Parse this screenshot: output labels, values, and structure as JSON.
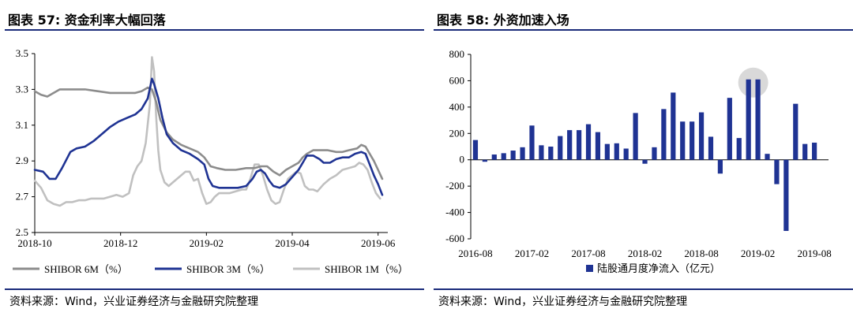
{
  "left": {
    "title": "图表 57: 资金利率大幅回落",
    "source": "资料来源：Wind，兴业证券经济与金融研究院整理",
    "chart_data": {
      "type": "line",
      "x_ticks": [
        "2018-10",
        "2018-12",
        "2019-02",
        "2019-04",
        "2019-06"
      ],
      "y_ticks": [
        "2.5",
        "2.7",
        "2.9",
        "3.1",
        "3.3",
        "3.5"
      ],
      "ylim": [
        2.5,
        3.5
      ],
      "xlim": [
        0,
        100
      ],
      "legend_position": "bottom",
      "series": [
        {
          "name": "SHIBOR 6M（%）",
          "color": "#8c8c8c",
          "points": [
            [
              0,
              3.29
            ],
            [
              3,
              3.27
            ],
            [
              6,
              3.26
            ],
            [
              9,
              3.28
            ],
            [
              12,
              3.3
            ],
            [
              18,
              3.3
            ],
            [
              24,
              3.3
            ],
            [
              30,
              3.29
            ],
            [
              36,
              3.28
            ],
            [
              42,
              3.28
            ],
            [
              48,
              3.28
            ],
            [
              51,
              3.29
            ],
            [
              54,
              3.31
            ],
            [
              56,
              3.3
            ],
            [
              58,
              3.23
            ],
            [
              60,
              3.13
            ],
            [
              63,
              3.06
            ],
            [
              66,
              3.02
            ],
            [
              70,
              2.99
            ],
            [
              74,
              2.97
            ],
            [
              78,
              2.95
            ],
            [
              81,
              2.92
            ],
            [
              84,
              2.87
            ],
            [
              87,
              2.86
            ],
            [
              91,
              2.85
            ],
            [
              96,
              2.85
            ],
            [
              101,
              2.86
            ],
            [
              105,
              2.86
            ],
            [
              108,
              2.87
            ],
            [
              111,
              2.87
            ],
            [
              114,
              2.84
            ],
            [
              117,
              2.82
            ],
            [
              120,
              2.85
            ],
            [
              123,
              2.87
            ],
            [
              126,
              2.89
            ],
            [
              128,
              2.92
            ],
            [
              130,
              2.94
            ],
            [
              133,
              2.96
            ],
            [
              136,
              2.96
            ],
            [
              140,
              2.96
            ],
            [
              144,
              2.95
            ],
            [
              147,
              2.95
            ],
            [
              150,
              2.96
            ],
            [
              154,
              2.97
            ],
            [
              156,
              2.99
            ],
            [
              158,
              2.98
            ],
            [
              160,
              2.94
            ],
            [
              162,
              2.9
            ],
            [
              164,
              2.85
            ],
            [
              166,
              2.8
            ]
          ]
        },
        {
          "name": "SHIBOR 3M（%）",
          "color": "#1f3393",
          "points": [
            [
              0,
              2.85
            ],
            [
              4,
              2.84
            ],
            [
              7,
              2.8
            ],
            [
              10,
              2.8
            ],
            [
              13,
              2.86
            ],
            [
              17,
              2.95
            ],
            [
              20,
              2.97
            ],
            [
              24,
              2.98
            ],
            [
              28,
              3.01
            ],
            [
              32,
              3.05
            ],
            [
              36,
              3.09
            ],
            [
              40,
              3.12
            ],
            [
              44,
              3.14
            ],
            [
              48,
              3.16
            ],
            [
              51,
              3.19
            ],
            [
              54,
              3.25
            ],
            [
              56,
              3.36
            ],
            [
              57,
              3.33
            ],
            [
              59,
              3.25
            ],
            [
              61,
              3.14
            ],
            [
              63,
              3.05
            ],
            [
              66,
              3.0
            ],
            [
              70,
              2.96
            ],
            [
              74,
              2.94
            ],
            [
              78,
              2.91
            ],
            [
              81,
              2.88
            ],
            [
              83,
              2.8
            ],
            [
              85,
              2.76
            ],
            [
              88,
              2.75
            ],
            [
              92,
              2.75
            ],
            [
              97,
              2.75
            ],
            [
              101,
              2.76
            ],
            [
              104,
              2.8
            ],
            [
              106,
              2.84
            ],
            [
              108,
              2.85
            ],
            [
              110,
              2.83
            ],
            [
              112,
              2.79
            ],
            [
              114,
              2.76
            ],
            [
              117,
              2.75
            ],
            [
              120,
              2.77
            ],
            [
              123,
              2.81
            ],
            [
              126,
              2.85
            ],
            [
              128,
              2.89
            ],
            [
              130,
              2.93
            ],
            [
              133,
              2.93
            ],
            [
              136,
              2.91
            ],
            [
              138,
              2.89
            ],
            [
              141,
              2.89
            ],
            [
              144,
              2.91
            ],
            [
              147,
              2.92
            ],
            [
              150,
              2.92
            ],
            [
              153,
              2.94
            ],
            [
              156,
              2.95
            ],
            [
              158,
              2.94
            ],
            [
              160,
              2.88
            ],
            [
              162,
              2.82
            ],
            [
              164,
              2.77
            ],
            [
              166,
              2.71
            ]
          ]
        },
        {
          "name": "SHIBOR 1M（%）",
          "color": "#c0c0c0",
          "points": [
            [
              0,
              2.79
            ],
            [
              3,
              2.75
            ],
            [
              6,
              2.68
            ],
            [
              9,
              2.66
            ],
            [
              12,
              2.65
            ],
            [
              15,
              2.67
            ],
            [
              18,
              2.67
            ],
            [
              21,
              2.68
            ],
            [
              24,
              2.68
            ],
            [
              27,
              2.69
            ],
            [
              30,
              2.69
            ],
            [
              33,
              2.69
            ],
            [
              36,
              2.7
            ],
            [
              39,
              2.71
            ],
            [
              42,
              2.7
            ],
            [
              45,
              2.72
            ],
            [
              47,
              2.82
            ],
            [
              49,
              2.87
            ],
            [
              51,
              2.9
            ],
            [
              53,
              3.0
            ],
            [
              55,
              3.22
            ],
            [
              56,
              3.48
            ],
            [
              57,
              3.4
            ],
            [
              58,
              3.15
            ],
            [
              59,
              2.96
            ],
            [
              60,
              2.85
            ],
            [
              62,
              2.78
            ],
            [
              64,
              2.76
            ],
            [
              66,
              2.78
            ],
            [
              68,
              2.8
            ],
            [
              70,
              2.82
            ],
            [
              72,
              2.84
            ],
            [
              74,
              2.84
            ],
            [
              76,
              2.79
            ],
            [
              78,
              2.8
            ],
            [
              80,
              2.72
            ],
            [
              82,
              2.66
            ],
            [
              84,
              2.67
            ],
            [
              86,
              2.7
            ],
            [
              88,
              2.72
            ],
            [
              90,
              2.72
            ],
            [
              93,
              2.72
            ],
            [
              96,
              2.73
            ],
            [
              99,
              2.74
            ],
            [
              101,
              2.74
            ],
            [
              103,
              2.8
            ],
            [
              105,
              2.88
            ],
            [
              107,
              2.88
            ],
            [
              109,
              2.82
            ],
            [
              111,
              2.74
            ],
            [
              113,
              2.68
            ],
            [
              115,
              2.66
            ],
            [
              117,
              2.67
            ],
            [
              119,
              2.74
            ],
            [
              121,
              2.8
            ],
            [
              123,
              2.82
            ],
            [
              125,
              2.84
            ],
            [
              127,
              2.83
            ],
            [
              129,
              2.76
            ],
            [
              131,
              2.74
            ],
            [
              133,
              2.74
            ],
            [
              135,
              2.73
            ],
            [
              138,
              2.77
            ],
            [
              141,
              2.8
            ],
            [
              144,
              2.82
            ],
            [
              147,
              2.85
            ],
            [
              150,
              2.86
            ],
            [
              153,
              2.87
            ],
            [
              155,
              2.89
            ],
            [
              157,
              2.88
            ],
            [
              159,
              2.85
            ],
            [
              161,
              2.78
            ],
            [
              163,
              2.72
            ],
            [
              165,
              2.69
            ]
          ]
        }
      ]
    }
  },
  "right": {
    "title": "图表 58: 外资加速入场",
    "source": "资料来源：Wind，兴业证券经济与金融研究院整理",
    "chart_data": {
      "type": "bar",
      "categories": [
        "2016-08",
        "2016-09",
        "2016-10",
        "2016-11",
        "2016-12",
        "2017-01",
        "2017-02",
        "2017-03",
        "2017-04",
        "2017-05",
        "2017-06",
        "2017-07",
        "2017-08",
        "2017-09",
        "2017-10",
        "2017-11",
        "2017-12",
        "2018-01",
        "2018-02",
        "2018-03",
        "2018-04",
        "2018-05",
        "2018-06",
        "2018-07",
        "2018-08",
        "2018-09",
        "2018-10",
        "2018-11",
        "2018-12",
        "2019-01",
        "2019-02",
        "2019-03",
        "2019-04",
        "2019-05",
        "2019-06",
        "2019-07",
        "2019-08",
        "2019-09"
      ],
      "values": [
        150,
        -15,
        40,
        50,
        70,
        95,
        260,
        110,
        100,
        180,
        225,
        225,
        270,
        210,
        120,
        125,
        85,
        355,
        -30,
        95,
        385,
        510,
        290,
        290,
        360,
        175,
        -105,
        470,
        165,
        610,
        610,
        45,
        -185,
        -540,
        425,
        120,
        130,
        0
      ],
      "x_ticks": [
        "2016-08",
        "2017-02",
        "2017-08",
        "2018-02",
        "2018-08",
        "2019-02",
        "2019-08"
      ],
      "x_tick_indices": [
        0,
        6,
        12,
        18,
        24,
        30,
        36
      ],
      "y_ticks": [
        "800",
        "600",
        "400",
        "200",
        "0",
        "-200",
        "-400",
        "-600"
      ],
      "ylim": [
        -600,
        800
      ],
      "highlight_categories": [
        "2019-01",
        "2019-02"
      ],
      "legend_position": "bottom",
      "series": [
        {
          "name": "陆股通月度净流入（亿元）",
          "color": "#1f3393"
        }
      ]
    }
  }
}
